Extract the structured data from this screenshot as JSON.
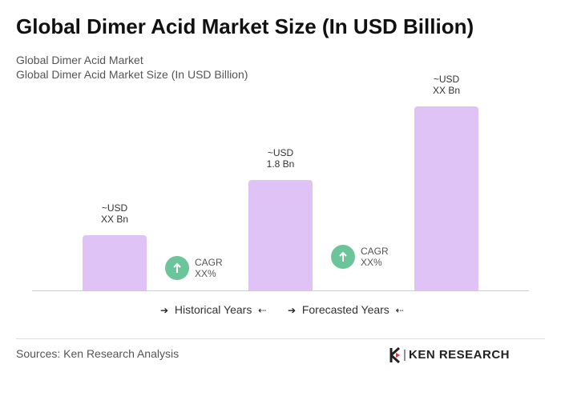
{
  "chart_data": {
    "type": "bar",
    "title": "Global Dimer Acid Market Size (In USD Billion)",
    "subtitle": [
      "Global Dimer Acid Market",
      "Global Dimer Acid Market Size (In USD Billion)"
    ],
    "values": [
      0.9,
      1.8,
      3.0
    ],
    "value_labels": [
      "~USD\nXX Bn",
      "~USD\n1.8 Bn",
      "~USD\nXX Bn"
    ],
    "color": "#dfc3f7",
    "annotations": [
      "CAGR\nXX%",
      "CAGR\nXX%"
    ],
    "annotation_color": "#6cc59a",
    "legend": [
      "Historical Years",
      "Forecasted Years"
    ],
    "source": "Sources: Ken Research Analysis",
    "logo": "KEN RESEARCH"
  }
}
